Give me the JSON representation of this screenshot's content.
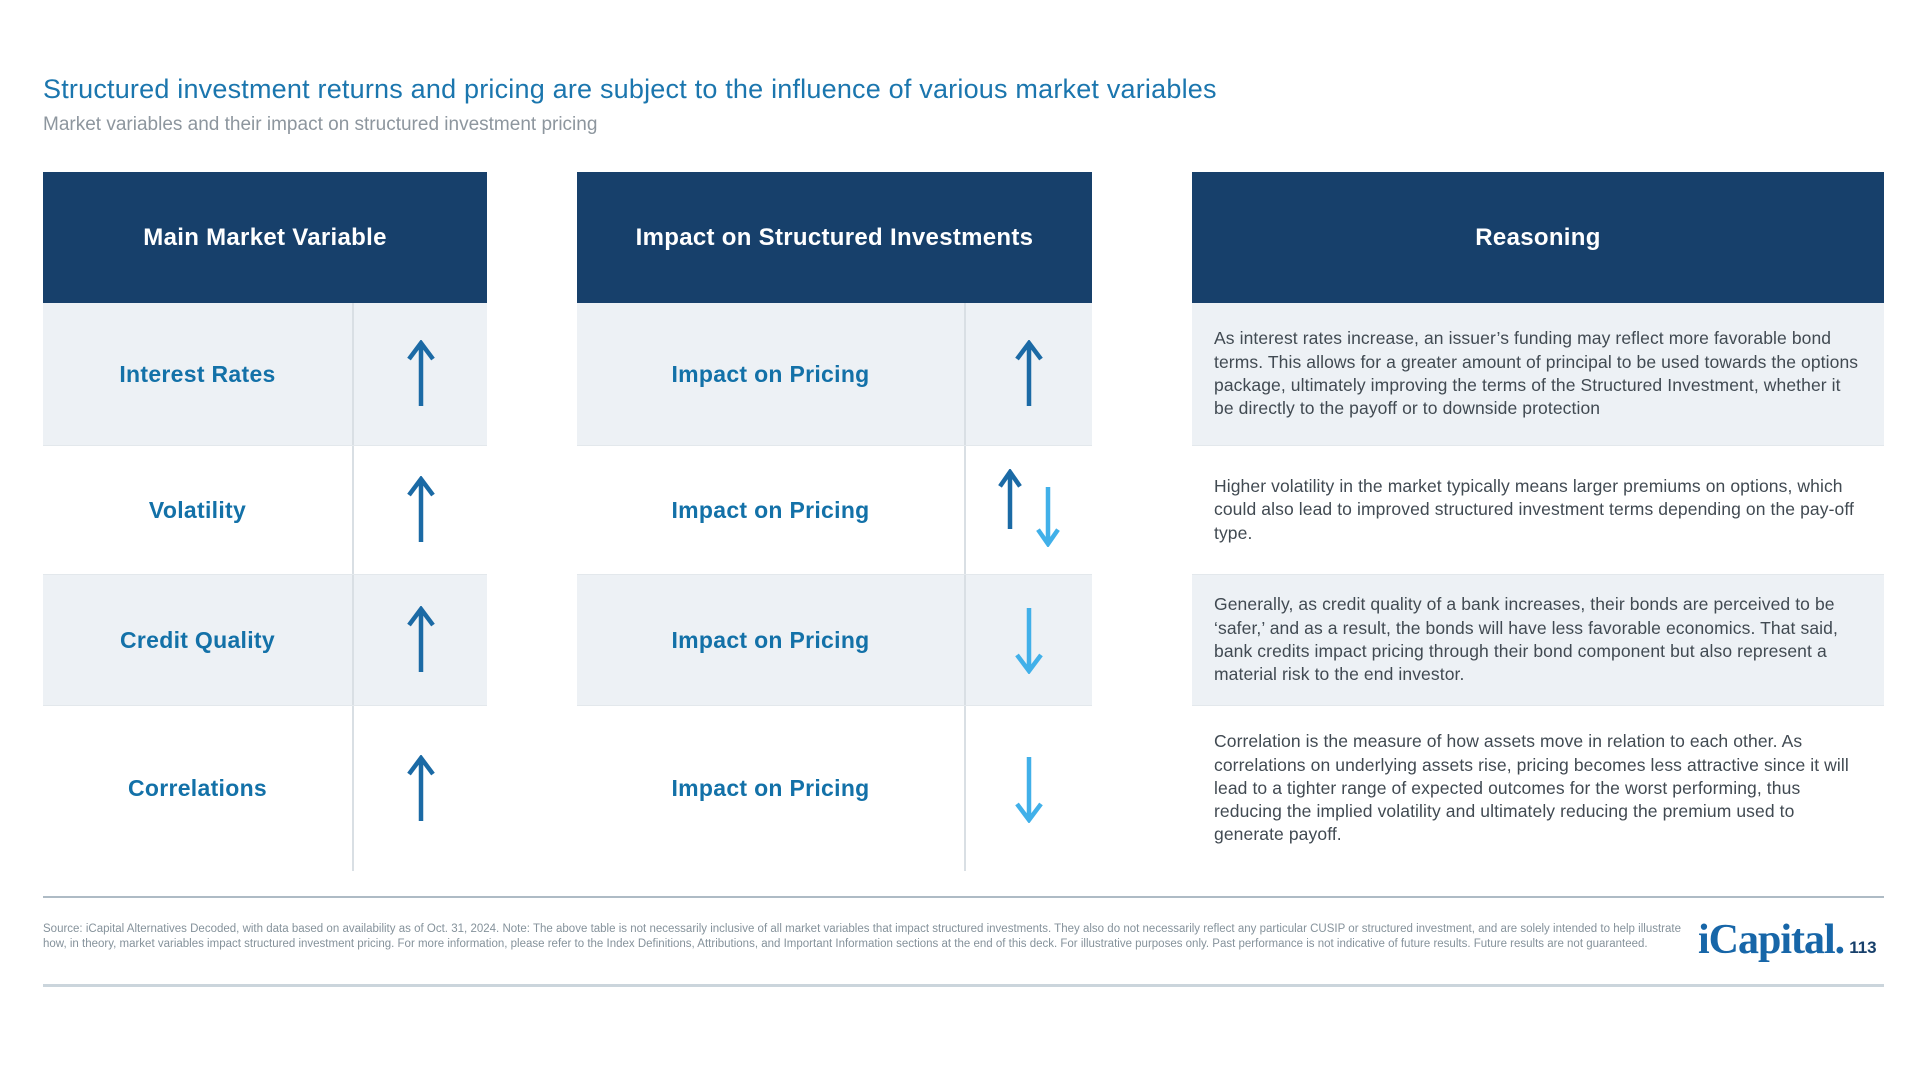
{
  "page": {
    "title": "Structured investment returns and pricing are subject to the influence of various market variables",
    "subtitle": "Market variables and their impact on structured investment pricing"
  },
  "colors": {
    "header_navy": "#17406B",
    "label_blue": "#1371A8",
    "arrow_dark_blue": "#1B6AA5",
    "arrow_light_blue": "#41B0E9",
    "row_gray": "#EDF1F5",
    "title_blue": "#1B76AE"
  },
  "tables": {
    "market_variable": {
      "header": "Main Market Variable",
      "rows": [
        {
          "label": "Interest Rates",
          "direction": "up"
        },
        {
          "label": "Volatility",
          "direction": "up"
        },
        {
          "label": "Credit Quality",
          "direction": "up"
        },
        {
          "label": "Correlations",
          "direction": "up"
        }
      ]
    },
    "impact": {
      "header": "Impact on Structured Investments",
      "rows": [
        {
          "label": "Impact on Pricing",
          "direction": "up"
        },
        {
          "label": "Impact on Pricing",
          "direction": "up-down"
        },
        {
          "label": "Impact on Pricing",
          "direction": "down"
        },
        {
          "label": "Impact on Pricing",
          "direction": "down"
        }
      ]
    },
    "reasoning": {
      "header": "Reasoning",
      "rows": [
        {
          "text": "As interest rates increase, an issuer’s funding may reflect more favorable bond terms. This allows for a greater amount of principal to be used towards the options package, ultimately improving the terms of the Structured Investment, whether it be directly to the payoff or to downside protection"
        },
        {
          "text": "Higher volatility in the market typically means larger premiums on options, which could also lead to improved structured investment terms depending on the pay-off type."
        },
        {
          "text": "Generally, as credit quality of a bank increases, their bonds are perceived to be ‘safer,’ and as a result, the bonds will have less favorable economics. That said, bank credits impact pricing through their bond component but also represent a material risk to the end investor."
        },
        {
          "text": "Correlation is the measure of how assets move in relation to each other. As correlations on underlying assets rise, pricing becomes less attractive since it will lead to a tighter range of expected outcomes for the worst performing, thus reducing the implied volatility and ultimately reducing the premium used to generate payoff."
        }
      ]
    }
  },
  "footer": {
    "source": "Source: iCapital Alternatives Decoded, with data based on availability as of Oct. 31, 2024. Note: The above table is not necessarily inclusive of all market variables that impact structured investments. They also do not necessarily reflect any particular CUSIP or structured investment, and are solely intended to help illustrate how, in theory, market variables impact structured investment pricing. For more information, please refer to the Index Definitions, Attributions, and Important Information sections at the end of this deck. For illustrative purposes only. Past performance is not indicative of future results. Future results are not guaranteed.",
    "logo_text": "iCapital.",
    "page_number": "113"
  }
}
